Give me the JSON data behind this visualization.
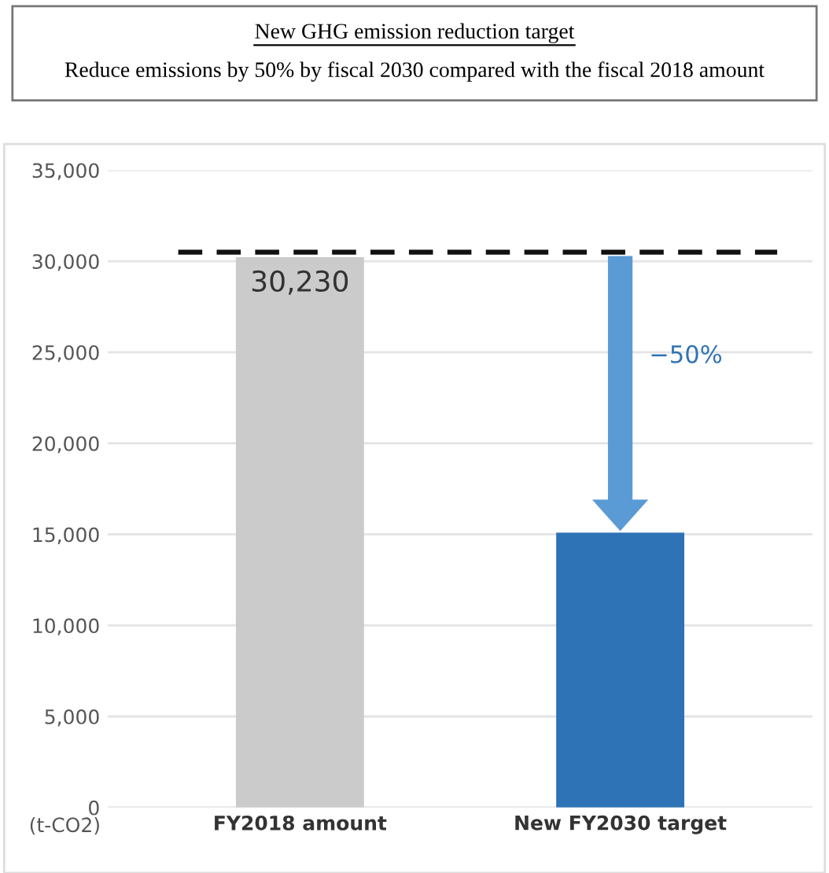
{
  "chart_data": {
    "type": "bar",
    "title": "New GHG emission reduction target",
    "subtitle": "Reduce emissions by 50% by fiscal 2030 compared with the fiscal 2018 amount",
    "ylabel": "(t-CO2)",
    "categories": [
      "FY2018 amount",
      "New FY2030 target"
    ],
    "values": [
      30230,
      15100
    ],
    "colors": [
      "#cccbcc",
      "#2e73b5"
    ],
    "value_labels": [
      "30,230",
      null
    ],
    "ylim": [
      0,
      35000
    ],
    "yticks": [
      {
        "value": 0,
        "label": "0"
      },
      {
        "value": 5000,
        "label": "5,000"
      },
      {
        "value": 10000,
        "label": "10,000"
      },
      {
        "value": 15000,
        "label": "15,000"
      },
      {
        "value": 20000,
        "label": "20,000"
      },
      {
        "value": 25000,
        "label": "25,000"
      },
      {
        "value": 30000,
        "label": "30,000"
      },
      {
        "value": 35000,
        "label": "35,000"
      }
    ],
    "ref_lines": [
      {
        "axis": "y",
        "value": 30500,
        "color": "#111111",
        "line_style": "dashed"
      }
    ],
    "annotations": [
      "−50%"
    ],
    "grid": "y",
    "legend": false
  }
}
